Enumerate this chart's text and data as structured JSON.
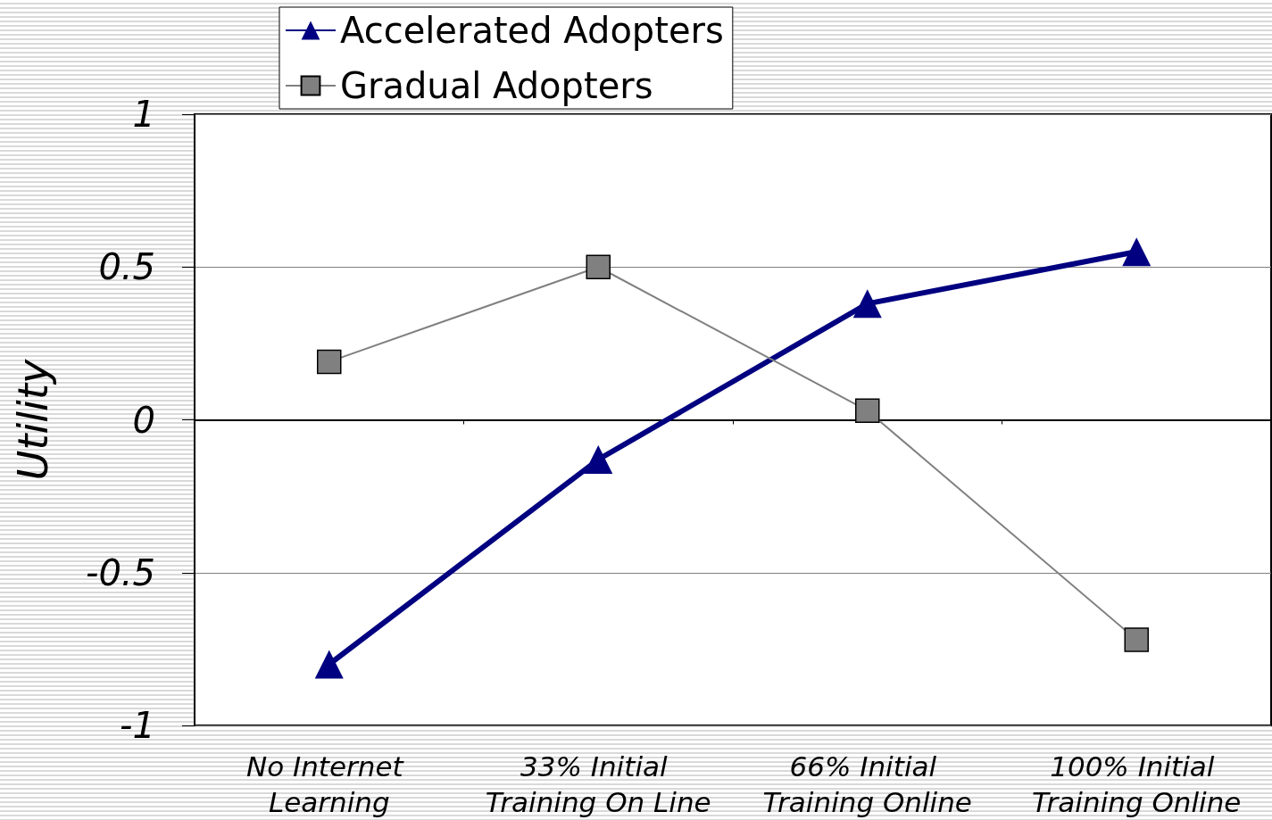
{
  "chart_data": {
    "type": "line",
    "ylabel": "Utility",
    "categories": [
      "No Internet Learning",
      "33% Initial Training On Line",
      "66% Initial Training Online",
      "100% Initial Training Online"
    ],
    "series": [
      {
        "name": "Accelerated Adopters",
        "color": "#000080",
        "marker": "triangle",
        "values": [
          -0.8,
          -0.13,
          0.38,
          0.55
        ]
      },
      {
        "name": "Gradual Adopters",
        "color": "#808080",
        "marker": "square",
        "values": [
          0.19,
          0.5,
          0.03,
          -0.72
        ]
      }
    ],
    "ylim": [
      -1,
      1
    ],
    "yticks": [
      -1,
      -0.5,
      0,
      0.5,
      1
    ],
    "grid": "y",
    "legend": "top left"
  }
}
